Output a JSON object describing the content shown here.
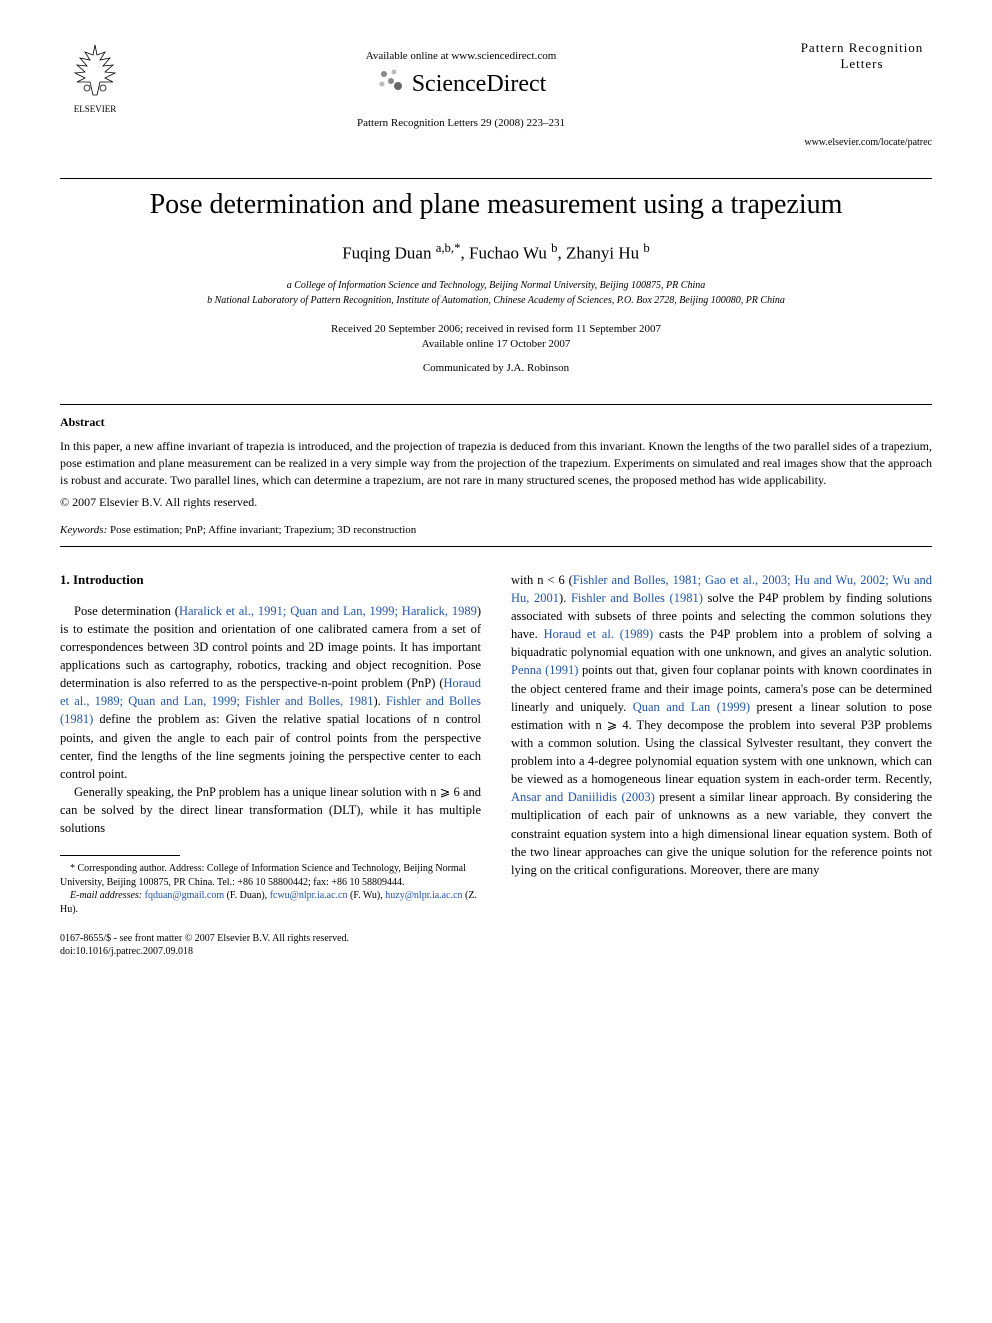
{
  "header": {
    "elsevier_label": "ELSEVIER",
    "available_text": "Available online at www.sciencedirect.com",
    "sd_brand": "ScienceDirect",
    "journal_ref": "Pattern Recognition Letters 29 (2008) 223–231",
    "journal_logo_line1": "Pattern Recognition",
    "journal_logo_line2": "Letters",
    "journal_url": "www.elsevier.com/locate/patrec"
  },
  "paper": {
    "title": "Pose determination and plane measurement using a trapezium",
    "authors_html": "Fuqing Duan <sup>a,b,*</sup>, Fuchao Wu <sup>b</sup>, Zhanyi Hu <sup>b</sup>",
    "affiliation_a": "a College of Information Science and Technology, Beijing Normal University, Beijing 100875, PR China",
    "affiliation_b": "b National Laboratory of Pattern Recognition, Institute of Automation, Chinese Academy of Sciences, P.O. Box 2728, Beijing 100080, PR China",
    "received": "Received 20 September 2006; received in revised form 11 September 2007",
    "available_online": "Available online 17 October 2007",
    "communicated": "Communicated by J.A. Robinson"
  },
  "abstract": {
    "heading": "Abstract",
    "body": "In this paper, a new affine invariant of trapezia is introduced, and the projection of trapezia is deduced from this invariant. Known the lengths of the two parallel sides of a trapezium, pose estimation and plane measurement can be realized in a very simple way from the projection of the trapezium. Experiments on simulated and real images show that the approach is robust and accurate. Two parallel lines, which can determine a trapezium, are not rare in many structured scenes, the proposed method has wide applicability.",
    "copyright": "© 2007 Elsevier B.V. All rights reserved.",
    "keywords_label": "Keywords:",
    "keywords": " Pose estimation; PnP; Affine invariant; Trapezium; 3D reconstruction"
  },
  "section1": {
    "heading": "1. Introduction",
    "para1_pre": "Pose determination (",
    "para1_ref1": "Haralick et al., 1991; Quan and Lan, 1999; Haralick, 1989",
    "para1_mid1": ") is to estimate the position and orientation of one calibrated camera from a set of correspondences between 3D control points and 2D image points. It has important applications such as cartography, robotics, tracking and object recognition. Pose determination is also referred to as the perspective-n-point problem (PnP) (",
    "para1_ref2": "Horaud et al., 1989; Quan and Lan, 1999; Fishler and Bolles, 1981",
    "para1_mid2": "). ",
    "para1_ref3": "Fishler and Bolles (1981)",
    "para1_post": " define the problem as: Given the relative spatial locations of n control points, and given the angle to each pair of control points from the perspective center, find the lengths of the line segments joining the perspective center to each control point.",
    "para2": "Generally speaking, the PnP problem has a unique linear solution with n ⩾ 6 and can be solved by the direct linear transformation (DLT), while it has multiple solutions",
    "col2_pre": "with n < 6 (",
    "col2_ref1": "Fishler and Bolles, 1981; Gao et al., 2003; Hu and Wu, 2002; Wu and Hu, 2001",
    "col2_mid1": "). ",
    "col2_ref2": "Fishler and Bolles (1981)",
    "col2_mid2": " solve the P4P problem by finding solutions associated with subsets of three points and selecting the common solutions they have. ",
    "col2_ref3": "Horaud et al. (1989)",
    "col2_mid3": " casts the P4P problem into a problem of solving a biquadratic polynomial equation with one unknown, and gives an analytic solution. ",
    "col2_ref4": "Penna (1991)",
    "col2_mid4": " points out that, given four coplanar points with known coordinates in the object centered frame and their image points, camera's pose can be determined linearly and uniquely. ",
    "col2_ref5": "Quan and Lan (1999)",
    "col2_mid5": " present a linear solution to pose estimation with n ⩾ 4. They decompose the problem into several P3P problems with a common solution. Using the classical Sylvester resultant, they convert the problem into a 4-degree polynomial equation system with one unknown, which can be viewed as a homogeneous linear equation system in each-order term. Recently, ",
    "col2_ref6": "Ansar and Daniilidis (2003)",
    "col2_post": " present a similar linear approach. By considering the multiplication of each pair of unknowns as a new variable, they convert the constraint equation system into a high dimensional linear equation system. Both of the two linear approaches can give the unique solution for the reference points not lying on the critical configurations. Moreover, there are many"
  },
  "footnote": {
    "corresponding": "* Corresponding author. Address: College of Information Science and Technology, Beijing Normal University, Beijing 100875, PR China. Tel.: +86 10 58800442; fax: +86 10 58809444.",
    "email_label": "E-mail addresses:",
    "email1": "fqduan@gmail.com",
    "email1_name": " (F. Duan), ",
    "email2": "fcwu@nlpr.ia.ac.cn",
    "email2_name": " (F. Wu), ",
    "email3": "huzy@nlpr.ia.ac.cn",
    "email3_name": " (Z. Hu)."
  },
  "bottom": {
    "issn": "0167-8655/$ - see front matter © 2007 Elsevier B.V. All rights reserved.",
    "doi": "doi:10.1016/j.patrec.2007.09.018"
  },
  "colors": {
    "link": "#2255aa",
    "text": "#000000",
    "bg": "#ffffff"
  }
}
